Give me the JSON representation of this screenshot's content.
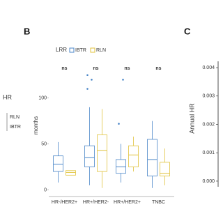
{
  "panel_a_legend": {
    "title": "HR",
    "items": [
      "RLN",
      "IBTR"
    ]
  },
  "chart_data": [
    {
      "type": "boxplot",
      "panel_label": "B",
      "legend_title": "LRR",
      "y_label": "months",
      "categories": [
        "HR-/HER2+",
        "HR+/HER2-",
        "HR+/HER2+",
        "TNBC"
      ],
      "annotations": [
        "ns",
        "ns",
        "ns",
        "ns"
      ],
      "ylim": [
        -5,
        140
      ],
      "yticks": [
        0,
        50,
        100
      ],
      "series": [
        {
          "name": "IBTR",
          "color": "#4a86c8",
          "whislo": [
            8,
            5,
            8,
            2
          ],
          "q1": [
            20,
            25,
            18,
            15
          ],
          "median": [
            28,
            35,
            25,
            33
          ],
          "q3": [
            37,
            48,
            33,
            55
          ],
          "whishi": [
            52,
            90,
            50,
            75
          ],
          "outliers": [
            [],
            [
              110,
              120,
              125
            ],
            [
              72,
              120
            ],
            []
          ]
        },
        {
          "name": "RLN",
          "color": "#e0c23a",
          "whislo": [
            16,
            2,
            20,
            5
          ],
          "q1": [
            16,
            20,
            25,
            15
          ],
          "median": [
            19,
            43,
            38,
            18
          ],
          "q3": [
            21,
            60,
            48,
            30
          ],
          "whishi": [
            21,
            88,
            58,
            45
          ],
          "outliers": [
            [],
            [],
            [],
            []
          ]
        }
      ]
    },
    {
      "type": "line",
      "panel_label": "C",
      "y_label": "Annual HR",
      "ylim": [
        -0.0001,
        0.0041
      ],
      "yticks": [
        {
          "value": 0,
          "label": "0.000"
        },
        {
          "value": 0.001,
          "label": "0.001"
        },
        {
          "value": 0.002,
          "label": "0.002"
        },
        {
          "value": 0.003,
          "label": "0.003"
        },
        {
          "value": 0.004,
          "label": "0.004"
        }
      ],
      "series": []
    }
  ]
}
